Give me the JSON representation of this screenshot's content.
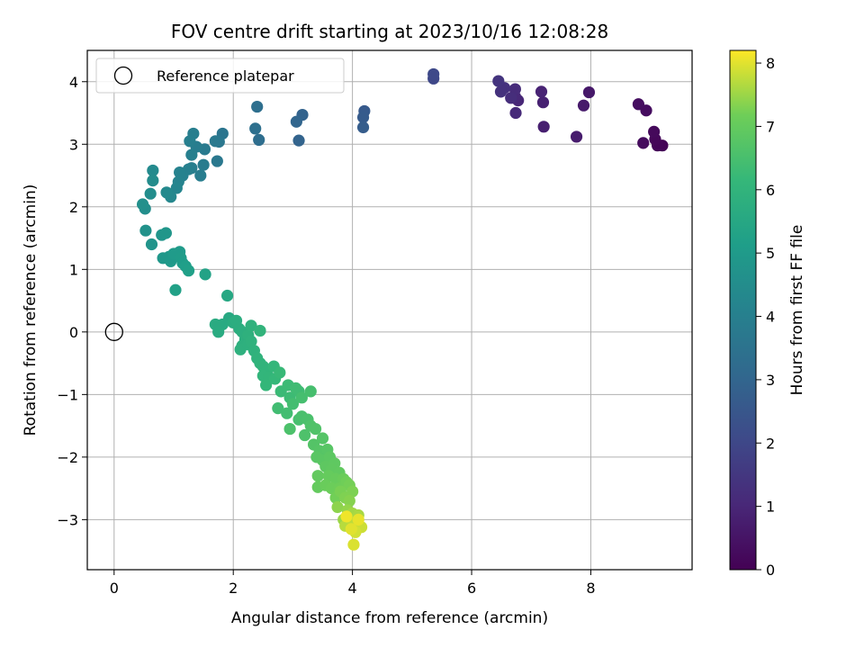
{
  "chart_data": {
    "type": "scatter",
    "title": "FOV centre drift starting at 2023/10/16 12:08:28",
    "xlabel": "Angular distance from reference (arcmin)",
    "ylabel": "Rotation from reference (arcmin)",
    "xlim": [
      -0.45,
      9.7
    ],
    "ylim": [
      -3.8,
      4.5
    ],
    "xticks": [
      0,
      2,
      4,
      6,
      8
    ],
    "yticks": [
      -3,
      -2,
      -1,
      0,
      1,
      2,
      3,
      4
    ],
    "grid": true,
    "legend": {
      "position": "top-left",
      "entries": [
        "Reference platepar"
      ]
    },
    "colorbar": {
      "label": "Hours from first FF file",
      "range": [
        0,
        8.2
      ],
      "ticks": [
        0,
        1,
        2,
        3,
        4,
        5,
        6,
        7,
        8
      ],
      "colormap": "viridis"
    },
    "reference_point": {
      "x": 0,
      "y": 0
    },
    "series": [
      {
        "fields": [
          "x",
          "y",
          "hours"
        ],
        "points": [
          [
            9.2,
            2.98,
            0.05
          ],
          [
            9.12,
            2.98,
            0.1
          ],
          [
            9.08,
            3.08,
            0.15
          ],
          [
            9.06,
            3.2,
            0.2
          ],
          [
            8.88,
            3.02,
            0.25
          ],
          [
            8.93,
            3.54,
            0.3
          ],
          [
            8.8,
            3.64,
            0.35
          ],
          [
            7.97,
            3.83,
            0.6
          ],
          [
            7.88,
            3.62,
            0.65
          ],
          [
            7.76,
            3.12,
            0.7
          ],
          [
            7.21,
            3.28,
            0.8
          ],
          [
            7.2,
            3.67,
            0.85
          ],
          [
            7.17,
            3.84,
            0.9
          ],
          [
            6.78,
            3.7,
            1.0
          ],
          [
            6.73,
            3.76,
            1.05
          ],
          [
            6.74,
            3.5,
            1.1
          ],
          [
            6.73,
            3.88,
            1.15
          ],
          [
            6.66,
            3.74,
            1.2
          ],
          [
            6.55,
            3.9,
            1.3
          ],
          [
            6.49,
            3.84,
            1.35
          ],
          [
            6.45,
            4.01,
            1.4
          ],
          [
            5.36,
            4.05,
            2.0
          ],
          [
            5.36,
            4.12,
            2.05
          ],
          [
            4.2,
            3.53,
            2.6
          ],
          [
            4.18,
            3.43,
            2.65
          ],
          [
            4.18,
            3.27,
            2.7
          ],
          [
            3.16,
            3.47,
            2.9
          ],
          [
            3.1,
            3.06,
            2.95
          ],
          [
            3.06,
            3.36,
            3.0
          ],
          [
            2.43,
            3.07,
            3.3
          ],
          [
            2.4,
            3.6,
            3.35
          ],
          [
            2.37,
            3.25,
            3.4
          ],
          [
            1.82,
            3.17,
            3.6
          ],
          [
            1.76,
            3.04,
            3.65
          ],
          [
            1.73,
            2.73,
            3.7
          ],
          [
            1.7,
            3.05,
            3.75
          ],
          [
            1.52,
            2.92,
            3.8
          ],
          [
            1.5,
            2.67,
            3.85
          ],
          [
            1.45,
            2.5,
            3.9
          ],
          [
            1.38,
            2.96,
            3.92
          ],
          [
            1.33,
            3.17,
            3.94
          ],
          [
            1.3,
            2.62,
            3.96
          ],
          [
            1.27,
            3.05,
            3.98
          ],
          [
            1.3,
            2.83,
            4.0
          ],
          [
            1.25,
            2.6,
            4.02
          ],
          [
            1.15,
            2.5,
            4.05
          ],
          [
            1.1,
            2.55,
            4.1
          ],
          [
            1.08,
            2.4,
            4.15
          ],
          [
            1.05,
            2.3,
            4.2
          ],
          [
            0.95,
            2.16,
            4.3
          ],
          [
            0.88,
            2.23,
            4.35
          ],
          [
            0.65,
            2.58,
            4.4
          ],
          [
            0.65,
            2.42,
            4.45
          ],
          [
            0.61,
            2.21,
            4.5
          ],
          [
            0.52,
            1.97,
            4.55
          ],
          [
            0.48,
            2.04,
            4.6
          ],
          [
            0.53,
            1.62,
            4.7
          ],
          [
            0.63,
            1.4,
            4.75
          ],
          [
            0.8,
            1.55,
            4.8
          ],
          [
            0.87,
            1.58,
            4.85
          ],
          [
            0.92,
            1.2,
            4.9
          ],
          [
            0.82,
            1.18,
            4.92
          ],
          [
            0.95,
            1.13,
            4.95
          ],
          [
            1.0,
            1.25,
            5.0
          ],
          [
            1.1,
            1.28,
            5.02
          ],
          [
            1.12,
            1.18,
            5.05
          ],
          [
            1.15,
            1.1,
            5.1
          ],
          [
            1.2,
            1.05,
            5.15
          ],
          [
            1.25,
            0.98,
            5.2
          ],
          [
            1.03,
            0.67,
            5.25
          ],
          [
            1.53,
            0.92,
            5.3
          ],
          [
            1.9,
            0.58,
            5.5
          ],
          [
            1.93,
            0.22,
            5.55
          ],
          [
            1.82,
            0.12,
            5.6
          ],
          [
            1.7,
            0.12,
            5.62
          ],
          [
            1.75,
            0.0,
            5.65
          ],
          [
            2.0,
            0.15,
            5.7
          ],
          [
            2.05,
            0.18,
            5.72
          ],
          [
            2.1,
            0.05,
            5.75
          ],
          [
            2.15,
            0.0,
            5.78
          ],
          [
            2.2,
            -0.12,
            5.8
          ],
          [
            2.15,
            -0.22,
            5.82
          ],
          [
            2.12,
            -0.28,
            5.85
          ],
          [
            2.25,
            -0.05,
            5.88
          ],
          [
            2.3,
            -0.15,
            5.9
          ],
          [
            2.35,
            -0.3,
            5.92
          ],
          [
            2.4,
            -0.42,
            5.95
          ],
          [
            2.45,
            -0.5,
            5.97
          ],
          [
            2.5,
            -0.55,
            6.0
          ],
          [
            2.55,
            -0.65,
            6.02
          ],
          [
            2.5,
            -0.7,
            6.05
          ],
          [
            2.6,
            -0.72,
            6.08
          ],
          [
            2.68,
            -0.55,
            6.1
          ],
          [
            2.55,
            -0.85,
            6.12
          ],
          [
            2.7,
            -0.75,
            6.15
          ],
          [
            2.45,
            0.02,
            6.0
          ],
          [
            2.3,
            0.1,
            5.9
          ],
          [
            2.25,
            -0.2,
            5.85
          ],
          [
            2.78,
            -0.65,
            6.2
          ],
          [
            2.8,
            -0.95,
            6.25
          ],
          [
            2.92,
            -0.85,
            6.28
          ],
          [
            2.95,
            -1.05,
            6.3
          ],
          [
            3.1,
            -0.95,
            6.33
          ],
          [
            3.05,
            -0.9,
            6.35
          ],
          [
            2.75,
            -1.22,
            6.38
          ],
          [
            2.9,
            -1.3,
            6.4
          ],
          [
            3.0,
            -1.15,
            6.42
          ],
          [
            3.15,
            -1.05,
            6.45
          ],
          [
            3.3,
            -0.95,
            6.48
          ],
          [
            3.1,
            -1.4,
            6.5
          ],
          [
            3.15,
            -1.35,
            6.52
          ],
          [
            3.25,
            -1.4,
            6.55
          ],
          [
            2.95,
            -1.55,
            6.58
          ],
          [
            3.2,
            -1.65,
            6.6
          ],
          [
            3.3,
            -1.5,
            6.62
          ],
          [
            3.38,
            -1.55,
            6.65
          ],
          [
            3.35,
            -1.8,
            6.7
          ],
          [
            3.5,
            -1.7,
            6.72
          ],
          [
            3.45,
            -1.9,
            6.75
          ],
          [
            3.58,
            -1.88,
            6.78
          ],
          [
            3.4,
            -2.0,
            6.8
          ],
          [
            3.5,
            -2.05,
            6.82
          ],
          [
            3.62,
            -2.0,
            6.85
          ],
          [
            3.55,
            -2.15,
            6.88
          ],
          [
            3.7,
            -2.1,
            6.9
          ],
          [
            3.65,
            -2.2,
            6.92
          ],
          [
            3.78,
            -2.25,
            6.95
          ],
          [
            3.42,
            -2.3,
            6.97
          ],
          [
            3.42,
            -2.48,
            7.0
          ],
          [
            3.6,
            -2.3,
            7.02
          ],
          [
            3.72,
            -2.35,
            7.05
          ],
          [
            3.55,
            -2.45,
            7.08
          ],
          [
            3.85,
            -2.35,
            7.1
          ],
          [
            3.65,
            -2.5,
            7.12
          ],
          [
            3.78,
            -2.5,
            7.15
          ],
          [
            3.9,
            -2.4,
            7.18
          ],
          [
            3.72,
            -2.65,
            7.2
          ],
          [
            3.95,
            -2.45,
            7.22
          ],
          [
            3.8,
            -2.55,
            7.25
          ],
          [
            4.0,
            -2.55,
            7.28
          ],
          [
            3.88,
            -2.65,
            7.3
          ],
          [
            3.95,
            -2.7,
            7.35
          ],
          [
            3.75,
            -2.8,
            7.4
          ],
          [
            3.92,
            -2.85,
            7.45
          ],
          [
            3.85,
            -3.0,
            7.5
          ],
          [
            4.0,
            -2.9,
            7.55
          ],
          [
            4.1,
            -2.93,
            7.6
          ],
          [
            3.95,
            -3.05,
            7.65
          ],
          [
            3.88,
            -3.1,
            7.7
          ],
          [
            4.02,
            -3.05,
            7.75
          ],
          [
            4.08,
            -3.12,
            7.8
          ],
          [
            4.15,
            -3.12,
            7.85
          ],
          [
            4.05,
            -3.2,
            7.9
          ],
          [
            4.02,
            -3.4,
            7.95
          ],
          [
            3.98,
            -3.15,
            8.0
          ],
          [
            4.1,
            -3.0,
            8.05
          ],
          [
            3.9,
            -2.95,
            8.1
          ]
        ]
      }
    ]
  }
}
